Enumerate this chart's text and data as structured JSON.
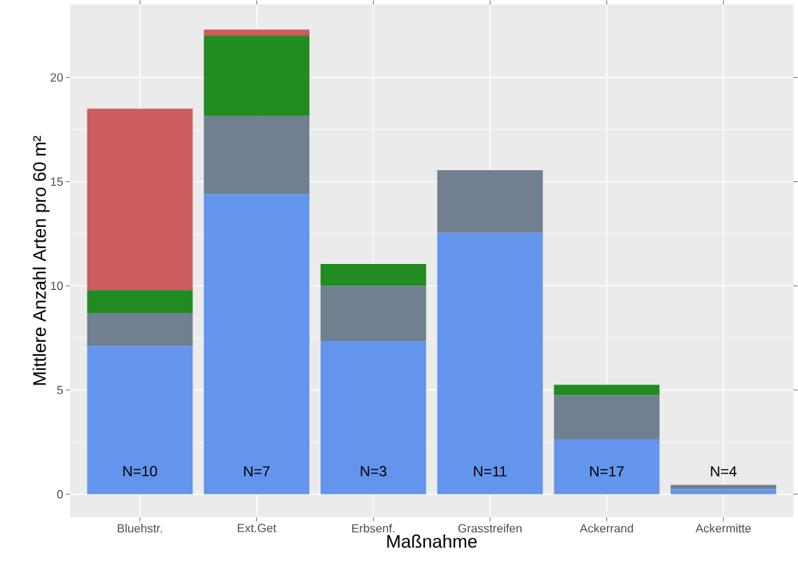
{
  "chart_data": {
    "type": "bar",
    "stacked": true,
    "xlabel": "Maßnahme",
    "ylabel": "Mittlere Anzahl Arten pro 60 m²",
    "categories": [
      "Bluehstr.",
      "Ext.Get",
      "Erbsenf.",
      "Grasstreifen",
      "Ackerrand",
      "Ackermitte"
    ],
    "series": [
      {
        "color": "#6495ed",
        "values": [
          7.1,
          14.4,
          7.35,
          12.55,
          2.65,
          0.25
        ]
      },
      {
        "color": "#708090",
        "values": [
          1.6,
          3.75,
          2.65,
          3.0,
          2.1,
          0.2
        ]
      },
      {
        "color": "#228b22",
        "values": [
          1.1,
          3.85,
          1.05,
          0,
          0.5,
          0
        ]
      },
      {
        "color": "#cd5c5c",
        "values": [
          8.7,
          0.3,
          0,
          0,
          0,
          0
        ]
      }
    ],
    "ylim": [
      -1.1,
      23.5
    ],
    "yticks": [
      0,
      5,
      10,
      15,
      20
    ],
    "grid": true,
    "annotations": [
      "N=10",
      "N=7",
      "N=3",
      "N=11",
      "N=17",
      "N=4"
    ]
  }
}
